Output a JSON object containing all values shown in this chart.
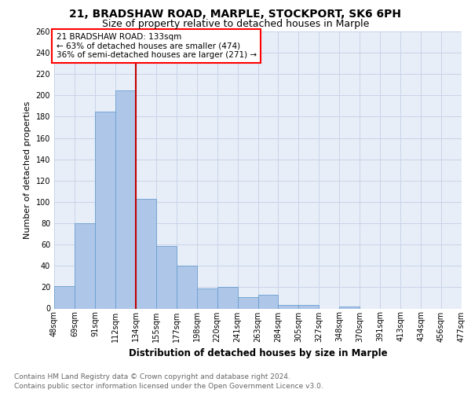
{
  "title1": "21, BRADSHAW ROAD, MARPLE, STOCKPORT, SK6 6PH",
  "title2": "Size of property relative to detached houses in Marple",
  "xlabel": "Distribution of detached houses by size in Marple",
  "ylabel": "Number of detached properties",
  "bar_values": [
    21,
    80,
    185,
    205,
    103,
    59,
    40,
    19,
    20,
    11,
    13,
    3,
    3,
    0,
    2,
    0,
    0,
    0,
    0,
    0
  ],
  "bar_labels": [
    "48sqm",
    "69sqm",
    "91sqm",
    "112sqm",
    "134sqm",
    "155sqm",
    "177sqm",
    "198sqm",
    "220sqm",
    "241sqm",
    "263sqm",
    "284sqm",
    "305sqm",
    "327sqm",
    "348sqm",
    "370sqm",
    "391sqm",
    "413sqm",
    "434sqm",
    "456sqm",
    "477sqm"
  ],
  "bar_color": "#aec6e8",
  "bar_edge_color": "#6a9fd0",
  "property_line_label": "21 BRADSHAW ROAD: 133sqm",
  "annotation_line1": "← 63% of detached houses are smaller (474)",
  "annotation_line2": "36% of semi-detached houses are larger (271) →",
  "annotation_box_color": "white",
  "annotation_box_edge": "red",
  "vline_color": "#c00000",
  "ylim": [
    0,
    260
  ],
  "yticks": [
    0,
    20,
    40,
    60,
    80,
    100,
    120,
    140,
    160,
    180,
    200,
    220,
    240,
    260
  ],
  "grid_color": "#c8d4e8",
  "bg_color": "#e8eef8",
  "footer1": "Contains HM Land Registry data © Crown copyright and database right 2024.",
  "footer2": "Contains public sector information licensed under the Open Government Licence v3.0.",
  "title1_fontsize": 10,
  "title2_fontsize": 9,
  "xlabel_fontsize": 8.5,
  "ylabel_fontsize": 8,
  "tick_fontsize": 7,
  "annot_fontsize": 7.5,
  "footer_fontsize": 6.5
}
